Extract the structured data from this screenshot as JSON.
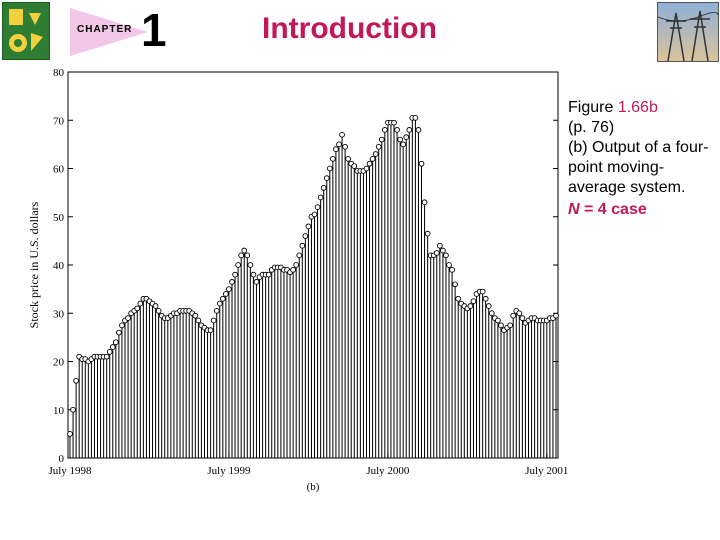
{
  "header": {
    "chapter_label": "CHAPTER",
    "chapter_number": "1",
    "title": "Introduction",
    "logo_icon": "gear-logo-icon",
    "photo_icon": "power-lines-photo-icon"
  },
  "caption": {
    "figure_word": "Figure",
    "figure_number": "1.66b",
    "page_ref": "(p. 76)",
    "description": "(b) Output of a four-point moving-average system.",
    "n_label": "N",
    "n_rest": "= 4 case"
  },
  "colors": {
    "title": "#c2185b",
    "accent": "#c2185b",
    "logo_green": "#2e7d32",
    "tab_pink": "#f2c6e6"
  },
  "chart_data": {
    "type": "stem",
    "ylabel": "Stock price in U.S. dollars",
    "xlabel": "(b)",
    "ylim": [
      0,
      80
    ],
    "yticks": [
      0,
      10,
      20,
      30,
      40,
      50,
      60,
      70,
      80
    ],
    "xtick_labels": [
      "July 1998",
      "July 1999",
      "July 2000",
      "July 2001"
    ],
    "xtick_index": [
      0,
      52,
      104,
      156
    ],
    "values": [
      5,
      10,
      16,
      21,
      20.5,
      20.5,
      20,
      20.5,
      21,
      21,
      21,
      21,
      21,
      22,
      23,
      24,
      26,
      27.5,
      28.5,
      29,
      30,
      30.5,
      31,
      32,
      33,
      33,
      32.5,
      32,
      31.5,
      30.5,
      29.5,
      29,
      29,
      29.5,
      30,
      30,
      30.5,
      30.5,
      30.5,
      30.5,
      30,
      29.5,
      28.5,
      27.5,
      27,
      26.5,
      26.5,
      28.5,
      30.5,
      32,
      33,
      34,
      35,
      36.5,
      38,
      40,
      42,
      43,
      42,
      40,
      38,
      36.5,
      37.5,
      38,
      38,
      38,
      39,
      39.5,
      39.5,
      39.5,
      39,
      39,
      38.5,
      39,
      40,
      42,
      44,
      46,
      48,
      50,
      50.5,
      52,
      54,
      56,
      58,
      60,
      62,
      64,
      65,
      67,
      64.5,
      62,
      61,
      60.5,
      59.5,
      59.5,
      59.5,
      60,
      61,
      62,
      63,
      64.5,
      66,
      68,
      69.5,
      69.5,
      69.5,
      68,
      66,
      65,
      66.5,
      68,
      70.5,
      70.5,
      68,
      61,
      53,
      46.5,
      42,
      42,
      42.5,
      44,
      43,
      42,
      40,
      39,
      36,
      33,
      32,
      31.5,
      31,
      31.5,
      32.5,
      34,
      34.5,
      34.5,
      33,
      31.5,
      30,
      29,
      28.5,
      27.5,
      26.5,
      27,
      27.5,
      29.5,
      30.5,
      30,
      29,
      28,
      28.5,
      29,
      29,
      28.5,
      28.5,
      28.5,
      28.5,
      29,
      29,
      29.5
    ]
  }
}
